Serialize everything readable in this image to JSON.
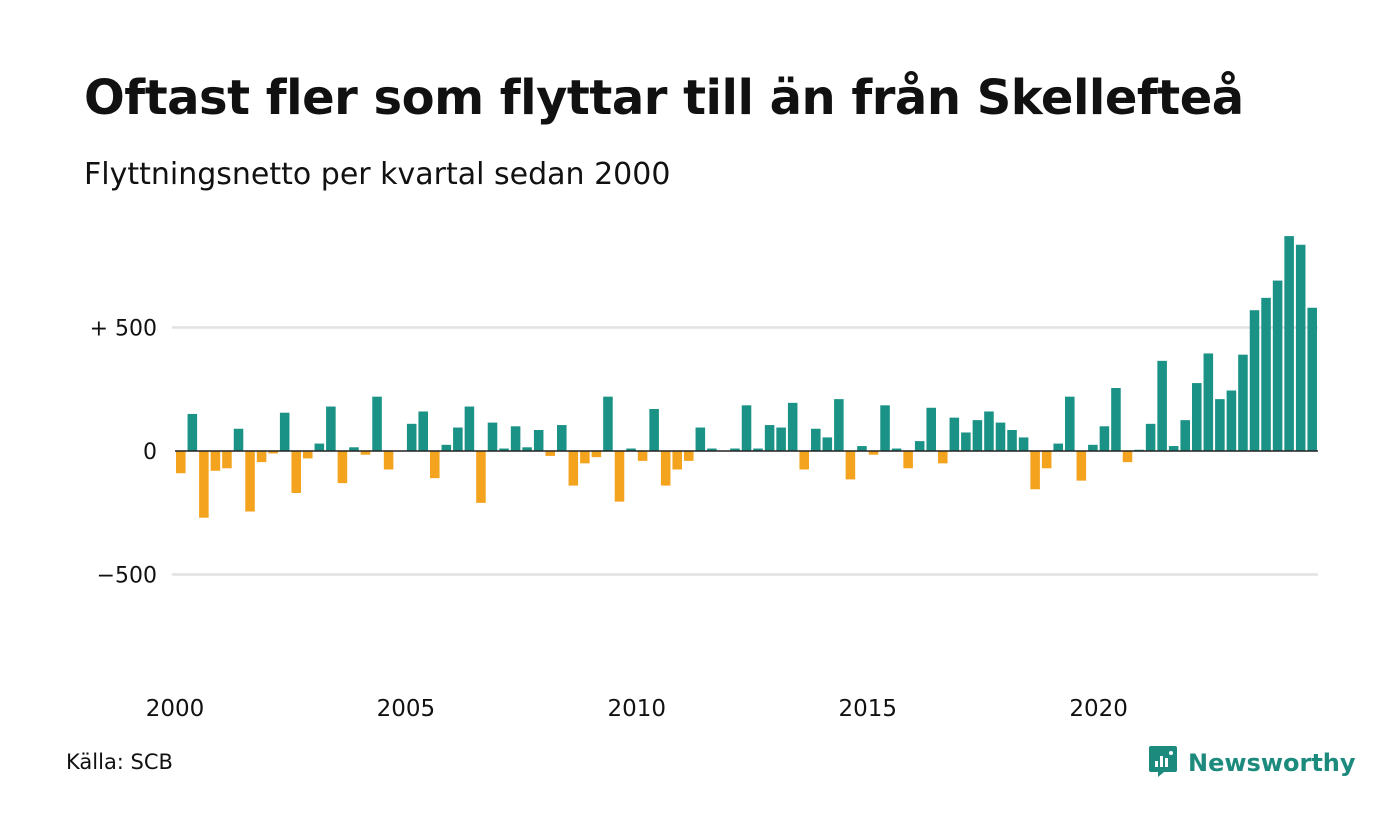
{
  "title": "Oftast fler som flyttar till än från Skellefteå",
  "subtitle": "Flyttningsnetto per kvartal sedan 2000",
  "source": "Källa: SCB",
  "brand": {
    "name": "Newsworthy",
    "icon": "newsworthy-logo-icon"
  },
  "colors": {
    "positive": "#1a9286",
    "negative": "#f4a31f",
    "grid": "#e2e2e2",
    "zero": "#222222"
  },
  "chart_data": {
    "type": "bar",
    "title": "Oftast fler som flyttar till än från Skellefteå",
    "subtitle": "Flyttningsnetto per kvartal sedan 2000",
    "xlabel": "",
    "ylabel": "",
    "ylim": [
      -900,
      900
    ],
    "grid": true,
    "legend": "none",
    "y_ticks": [
      {
        "value": 500,
        "label": "+ 500"
      },
      {
        "value": 0,
        "label": "0"
      },
      {
        "value": -500,
        "label": "−500"
      }
    ],
    "x_ticks": [
      "2000",
      "2005",
      "2010",
      "2015",
      "2020"
    ],
    "x_start": "2000 Q1",
    "values": [
      -90,
      150,
      -270,
      -80,
      -70,
      90,
      -245,
      -45,
      -10,
      155,
      -170,
      -30,
      30,
      180,
      -130,
      15,
      -15,
      220,
      -75,
      0,
      110,
      160,
      -110,
      25,
      95,
      180,
      -210,
      115,
      10,
      100,
      15,
      85,
      -20,
      105,
      -140,
      -50,
      -25,
      220,
      -205,
      10,
      -40,
      170,
      -140,
      -75,
      -40,
      95,
      10,
      0,
      10,
      185,
      10,
      105,
      95,
      195,
      -75,
      90,
      55,
      210,
      -115,
      20,
      -15,
      185,
      10,
      -70,
      40,
      175,
      -50,
      135,
      75,
      125,
      160,
      115,
      85,
      55,
      -155,
      -70,
      30,
      220,
      -120,
      25,
      100,
      255,
      -45,
      5,
      110,
      365,
      20,
      125,
      275,
      395,
      210,
      245,
      390,
      570,
      620,
      690,
      870,
      835,
      580
    ]
  }
}
